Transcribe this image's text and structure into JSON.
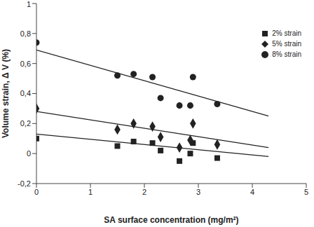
{
  "chart_data": {
    "type": "scatter",
    "x_label": "SA surface concentration (mg/m²)",
    "y_label": "Volume strain, Δ V (%)",
    "xlim": [
      0,
      5
    ],
    "xticks": [
      0,
      1,
      2,
      3,
      4,
      5
    ],
    "ylim": [
      -0.2,
      1
    ],
    "yticks": [
      {
        "value": -0.2,
        "label": "-0,2"
      },
      0,
      {
        "value": 0.2,
        "label": "0,2"
      },
      {
        "value": 0.4,
        "label": "0,4"
      },
      {
        "value": 0.6,
        "label": "0,6"
      },
      {
        "value": 0.8,
        "label": "0,8"
      },
      1
    ],
    "grid": false,
    "legend": "upper right",
    "series": [
      {
        "name": "2% strain",
        "color": "#222222",
        "marker": "square",
        "x": [
          0,
          1.5,
          1.8,
          2.15,
          2.3,
          2.65,
          2.85,
          2.9,
          3.35
        ],
        "values": [
          0.1,
          0.05,
          0.08,
          0.07,
          0.02,
          -0.05,
          0.0,
          0.07,
          -0.03
        ],
        "fit": {
          "x": [
            0,
            4.3
          ],
          "values": [
            0.13,
            -0.02
          ]
        }
      },
      {
        "name": "5% strain",
        "color": "#222222",
        "marker": "diamond",
        "x": [
          0,
          1.5,
          1.8,
          2.15,
          2.3,
          2.65,
          2.85,
          2.9,
          3.35
        ],
        "values": [
          0.3,
          0.16,
          0.2,
          0.18,
          0.11,
          0.04,
          0.09,
          0.2,
          0.06
        ],
        "fit": {
          "x": [
            0,
            4.3
          ],
          "values": [
            0.28,
            0.04
          ]
        }
      },
      {
        "name": "8% strain",
        "color": "#222222",
        "marker": "circle",
        "x": [
          0,
          1.5,
          1.8,
          2.15,
          2.3,
          2.65,
          2.85,
          2.9,
          3.35
        ],
        "values": [
          0.74,
          0.52,
          0.53,
          0.51,
          0.37,
          0.32,
          0.32,
          0.51,
          0.33
        ],
        "fit": {
          "x": [
            0,
            4.3
          ],
          "values": [
            0.69,
            0.25
          ]
        }
      }
    ]
  }
}
